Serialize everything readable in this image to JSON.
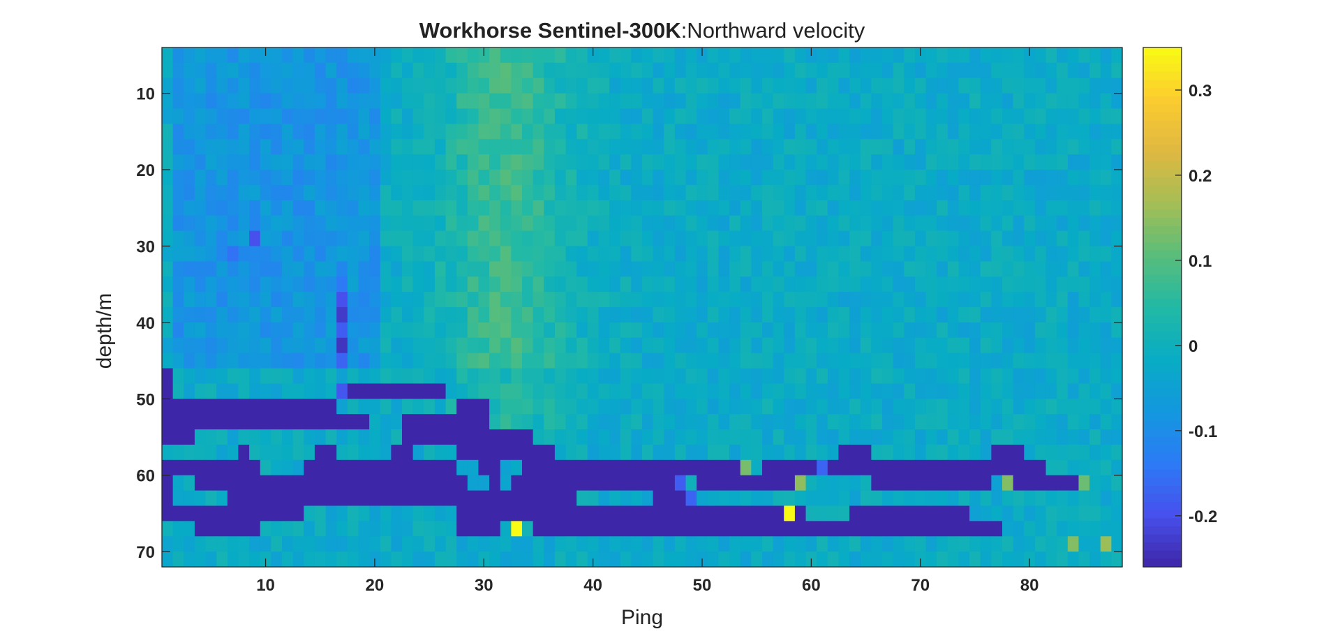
{
  "chart_data": {
    "type": "heatmap",
    "title": "Workhorse Sentinel-300K:Northward velocity",
    "title_bold_part": "Workhorse Sentinel-300K",
    "title_rest_part": ":Northward velocity",
    "xlabel": "Ping",
    "ylabel": "depth/m",
    "xlim": [
      0.5,
      88.5
    ],
    "ylim": [
      4,
      72
    ],
    "y_reversed": true,
    "x_ticks": [
      10,
      20,
      30,
      40,
      50,
      60,
      70,
      80
    ],
    "x_tick_labels": [
      "10",
      "20",
      "30",
      "40",
      "50",
      "60",
      "70",
      "80"
    ],
    "y_ticks": [
      10,
      20,
      30,
      40,
      50,
      60,
      70
    ],
    "y_tick_labels": [
      "10",
      "20",
      "30",
      "40",
      "50",
      "60",
      "70"
    ],
    "pings": 88,
    "depth_bins": {
      "first": 5,
      "last": 71,
      "step": 2
    },
    "colormap": "parula",
    "colorbar": {
      "limits": [
        -0.26,
        0.35
      ],
      "ticks": [
        -0.2,
        -0.1,
        0,
        0.1,
        0.2,
        0.3
      ],
      "tick_labels": [
        "-0.2",
        "-0.1",
        "0",
        "0.1",
        "0.2",
        "0.3"
      ]
    },
    "background_field": {
      "base": -0.02,
      "warm_band": {
        "center_ping": 32,
        "width_pings": 6,
        "amplitude": 0.09,
        "depth_range": [
          5,
          55
        ]
      },
      "cool_region": {
        "ping_range": [
          2,
          20
        ],
        "depth_range": [
          5,
          45
        ],
        "amplitude": -0.06
      },
      "noise_amplitude": 0.035
    },
    "low_value_fill": -0.26,
    "low_value_segments": [
      {
        "depth": 47,
        "pings": [
          [
            1,
            1
          ]
        ]
      },
      {
        "depth": 49,
        "pings": [
          [
            1,
            1
          ],
          [
            18,
            26
          ]
        ]
      },
      {
        "depth": 51,
        "pings": [
          [
            1,
            16
          ],
          [
            28,
            30
          ]
        ]
      },
      {
        "depth": 53,
        "pings": [
          [
            1,
            19
          ],
          [
            23,
            30
          ]
        ]
      },
      {
        "depth": 55,
        "pings": [
          [
            1,
            3
          ],
          [
            23,
            34
          ]
        ]
      },
      {
        "depth": 57,
        "pings": [
          [
            8,
            8
          ],
          [
            15,
            16
          ],
          [
            22,
            23
          ],
          [
            28,
            36
          ],
          [
            63,
            65
          ],
          [
            77,
            79
          ]
        ]
      },
      {
        "depth": 59,
        "pings": [
          [
            1,
            9
          ],
          [
            14,
            27
          ],
          [
            30,
            31
          ],
          [
            34,
            54
          ],
          [
            56,
            81
          ]
        ]
      },
      {
        "depth": 61,
        "pings": [
          [
            1,
            1
          ],
          [
            4,
            28
          ],
          [
            31,
            31
          ],
          [
            33,
            47
          ],
          [
            50,
            59
          ],
          [
            66,
            76
          ],
          [
            79,
            84
          ]
        ]
      },
      {
        "depth": 63,
        "pings": [
          [
            1,
            1
          ],
          [
            7,
            38
          ],
          [
            46,
            48
          ]
        ]
      },
      {
        "depth": 65,
        "pings": [
          [
            1,
            13
          ],
          [
            28,
            57
          ],
          [
            59,
            59
          ],
          [
            64,
            74
          ]
        ]
      },
      {
        "depth": 67,
        "pings": [
          [
            4,
            9
          ],
          [
            28,
            31
          ],
          [
            35,
            77
          ]
        ]
      }
    ],
    "highlight_cells": [
      {
        "ping": 17,
        "depth": 35,
        "value": -0.14
      },
      {
        "ping": 17,
        "depth": 37,
        "value": -0.2
      },
      {
        "ping": 17,
        "depth": 39,
        "value": -0.23
      },
      {
        "ping": 17,
        "depth": 41,
        "value": -0.18
      },
      {
        "ping": 17,
        "depth": 43,
        "value": -0.24
      },
      {
        "ping": 17,
        "depth": 45,
        "value": -0.17
      },
      {
        "ping": 17,
        "depth": 49,
        "value": -0.19
      },
      {
        "ping": 9,
        "depth": 29,
        "value": -0.2
      },
      {
        "ping": 7,
        "depth": 31,
        "value": -0.15
      },
      {
        "ping": 48,
        "depth": 61,
        "value": -0.18
      },
      {
        "ping": 49,
        "depth": 63,
        "value": -0.17
      },
      {
        "ping": 61,
        "depth": 59,
        "value": -0.17
      },
      {
        "ping": 54,
        "depth": 59,
        "value": 0.13
      },
      {
        "ping": 59,
        "depth": 61,
        "value": 0.15
      },
      {
        "ping": 78,
        "depth": 61,
        "value": 0.14
      },
      {
        "ping": 58,
        "depth": 65,
        "value": 0.35
      },
      {
        "ping": 33,
        "depth": 67,
        "value": 0.35
      },
      {
        "ping": 87,
        "depth": 69,
        "value": 0.16
      },
      {
        "ping": 84,
        "depth": 69,
        "value": 0.14
      },
      {
        "ping": 85,
        "depth": 61,
        "value": 0.12
      }
    ]
  }
}
